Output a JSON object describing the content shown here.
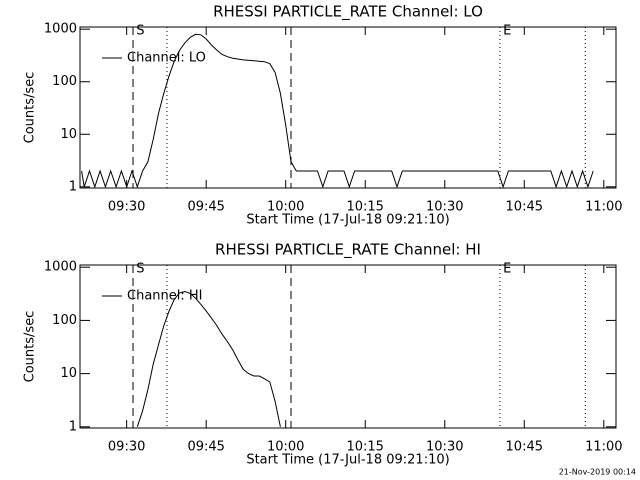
{
  "chart_data": [
    {
      "type": "line",
      "title": "RHESSI PARTICLE_RATE Channel: LO",
      "xlabel": "Start Time (17-Jul-18 09:21:10)",
      "ylabel": "Counts/sec",
      "xlim": [
        561.2,
        662.3
      ],
      "ylim": [
        0.95,
        1100
      ],
      "log_y": true,
      "xticks": [
        {
          "value": 570,
          "label": "09:30"
        },
        {
          "value": 585,
          "label": "09:45"
        },
        {
          "value": 600,
          "label": "10:00"
        },
        {
          "value": 615,
          "label": "10:15"
        },
        {
          "value": 630,
          "label": "10:30"
        },
        {
          "value": 645,
          "label": "10:45"
        },
        {
          "value": 660,
          "label": "11:00"
        }
      ],
      "yticks": [
        1,
        10,
        100,
        1000
      ],
      "legend": "top-left",
      "markers": [
        {
          "x": 571.2,
          "style": "dashed"
        },
        {
          "x": 577.6,
          "style": "dotted"
        },
        {
          "x": 601.0,
          "style": "dashed"
        },
        {
          "x": 640.4,
          "style": "dotted"
        },
        {
          "x": 656.5,
          "style": "dotted"
        }
      ],
      "annotations": [
        {
          "text": "S",
          "x": 571.8
        },
        {
          "text": "E",
          "x": 641.0
        }
      ],
      "series": [
        {
          "name": "Channel: LO",
          "color": "#000000",
          "x": [
            561.5,
            562,
            563,
            564,
            565,
            566,
            567,
            568,
            569,
            570,
            571,
            572,
            573,
            574,
            575,
            576,
            577,
            578,
            579,
            580,
            581,
            582,
            583,
            584,
            585,
            586,
            587,
            588,
            589,
            590,
            592,
            594,
            596,
            597,
            598,
            599,
            600,
            601,
            602,
            606,
            607,
            608,
            611,
            612,
            613,
            620,
            621,
            622,
            640,
            641,
            642,
            650,
            651,
            652,
            653,
            654,
            655,
            656,
            657,
            658
          ],
          "values": [
            2,
            1,
            2,
            1,
            2,
            1,
            2,
            1,
            2,
            1,
            2,
            1,
            2,
            3,
            8,
            25,
            60,
            130,
            250,
            400,
            550,
            700,
            800,
            780,
            650,
            500,
            400,
            330,
            300,
            280,
            260,
            250,
            240,
            220,
            150,
            60,
            15,
            3,
            2,
            2,
            1,
            2,
            2,
            1,
            2,
            2,
            1,
            2,
            2,
            1,
            2,
            2,
            1,
            2,
            1,
            2,
            1,
            2,
            1,
            2
          ]
        }
      ]
    },
    {
      "type": "line",
      "title": "RHESSI PARTICLE_RATE Channel: HI",
      "xlabel": "Start Time (17-Jul-18 09:21:10)",
      "ylabel": "Counts/sec",
      "xlim": [
        561.2,
        662.3
      ],
      "ylim": [
        0.95,
        1100
      ],
      "log_y": true,
      "xticks": [
        {
          "value": 570,
          "label": "09:30"
        },
        {
          "value": 585,
          "label": "09:45"
        },
        {
          "value": 600,
          "label": "10:00"
        },
        {
          "value": 615,
          "label": "10:15"
        },
        {
          "value": 630,
          "label": "10:30"
        },
        {
          "value": 645,
          "label": "10:45"
        },
        {
          "value": 660,
          "label": "11:00"
        }
      ],
      "yticks": [
        1,
        10,
        100,
        1000
      ],
      "legend": "top-left",
      "markers": [
        {
          "x": 571.2,
          "style": "dashed"
        },
        {
          "x": 577.6,
          "style": "dotted"
        },
        {
          "x": 601.0,
          "style": "dashed"
        },
        {
          "x": 640.4,
          "style": "dotted"
        },
        {
          "x": 656.5,
          "style": "dotted"
        }
      ],
      "annotations": [
        {
          "text": "S",
          "x": 571.8
        },
        {
          "text": "E",
          "x": 641.0
        }
      ],
      "series": [
        {
          "name": "Channel: HI",
          "color": "#000000",
          "x": [
            572,
            573,
            574,
            575,
            576,
            577,
            578,
            579,
            580,
            581,
            582,
            583,
            584,
            585,
            586,
            587,
            588,
            589,
            590,
            591,
            592,
            593,
            594,
            595,
            596,
            597,
            598,
            599
          ],
          "values": [
            1,
            2,
            5,
            15,
            35,
            80,
            150,
            250,
            330,
            350,
            320,
            260,
            200,
            150,
            110,
            80,
            55,
            40,
            28,
            18,
            12,
            10,
            9,
            9,
            8,
            7,
            3,
            1
          ]
        }
      ]
    }
  ],
  "footer": "21-Nov-2019 00:14"
}
